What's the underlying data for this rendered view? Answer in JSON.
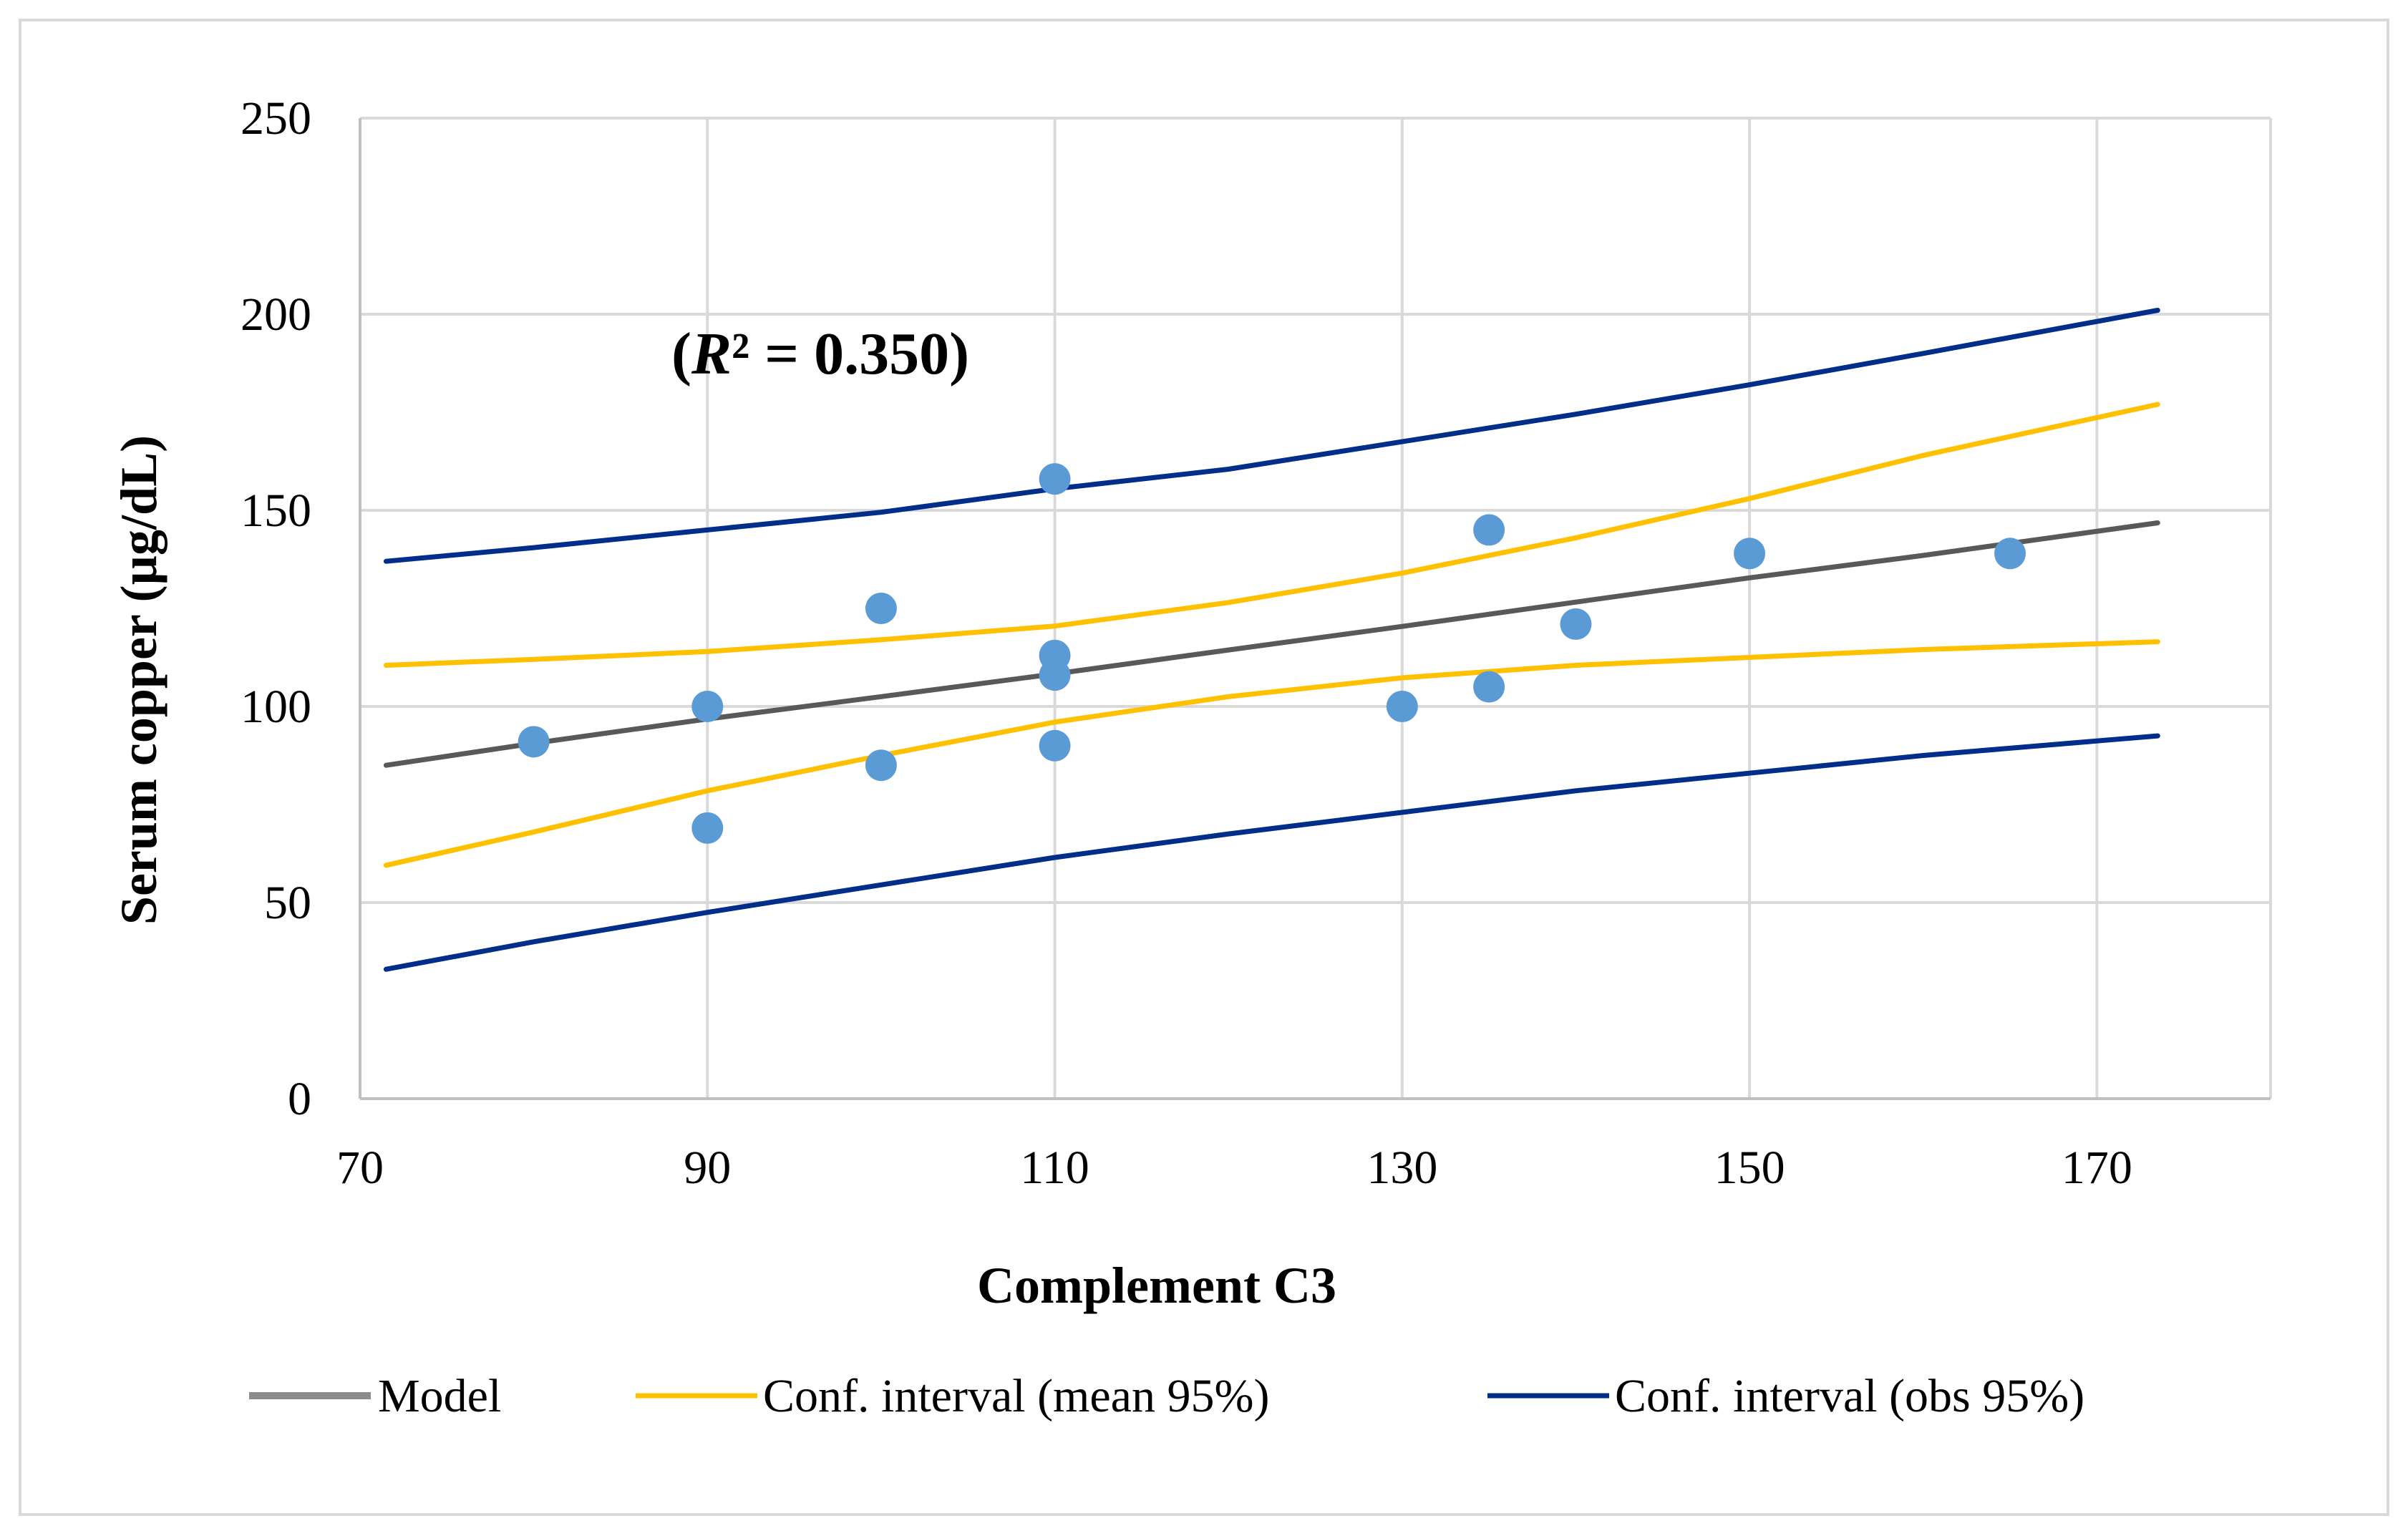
{
  "chart_data": {
    "type": "scatter",
    "title": "",
    "xlabel": "Complement C3",
    "ylabel": "Serum copper (µg/dL)",
    "xlim": [
      70,
      180
    ],
    "ylim": [
      0,
      250
    ],
    "x_ticks": [
      70,
      90,
      110,
      130,
      150,
      170
    ],
    "y_ticks": [
      0,
      50,
      100,
      150,
      200,
      250
    ],
    "x_tick_labels": [
      "70",
      "90",
      "110",
      "130",
      "150",
      "170"
    ],
    "y_tick_labels": [
      "0",
      "50",
      "100",
      "150",
      "200",
      "250"
    ],
    "grid": true,
    "legend_position": "bottom",
    "annotation": {
      "prefix": "(",
      "symbol": "R",
      "superscript": "²",
      "rest": " = 0.350)"
    },
    "points": {
      "name": "Observations",
      "color": "#5b9bd5",
      "x": [
        80,
        90,
        90,
        100,
        100,
        110,
        110,
        110,
        110,
        130,
        135,
        135,
        140,
        150,
        165
      ],
      "y": [
        91,
        100,
        69,
        125,
        85,
        158,
        113,
        108,
        90,
        100,
        145,
        105,
        121,
        139,
        139
      ]
    },
    "series": [
      {
        "name": "Model",
        "color": "#595959",
        "x": [
          71.5,
          80,
          90,
          100,
          110,
          120,
          130,
          140,
          150,
          160,
          173.5
        ],
        "y": [
          85,
          90.6,
          96.8,
          102.5,
          108.3,
          114.4,
          120.4,
          126.6,
          132.8,
          138.5,
          146.8
        ]
      },
      {
        "name": "Conf. interval (mean 95%)",
        "color": "#ffc000",
        "x": [
          71.5,
          80,
          90,
          100,
          110,
          120,
          130,
          140,
          150,
          160,
          173.5
        ],
        "y": [
          110.5,
          112,
          114,
          117,
          120.5,
          126.5,
          134,
          143,
          153,
          164,
          177
        ]
      },
      {
        "name": "Conf. interval (mean 95%)",
        "color": "#ffc000",
        "x": [
          71.5,
          80,
          90,
          100,
          110,
          120,
          130,
          140,
          150,
          160,
          173.5
        ],
        "y": [
          59.5,
          68,
          78.5,
          87.5,
          96,
          102.5,
          107.3,
          110.5,
          112.5,
          114.5,
          116.5
        ]
      },
      {
        "name": "Conf. interval (obs 95%)",
        "color": "#002e8a",
        "x": [
          71.5,
          80,
          90,
          100,
          110,
          120,
          130,
          140,
          150,
          160,
          173.5
        ],
        "y": [
          137,
          140.5,
          145,
          149.5,
          155.5,
          160.5,
          167.5,
          174.5,
          182,
          190,
          201
        ]
      },
      {
        "name": "Conf. interval (obs 95%)",
        "color": "#002e8a",
        "x": [
          71.5,
          80,
          90,
          100,
          110,
          120,
          130,
          140,
          150,
          160,
          173.5
        ],
        "y": [
          33,
          40,
          47.5,
          54.5,
          61.5,
          67.5,
          73,
          78.5,
          83,
          87.5,
          92.5
        ]
      }
    ],
    "legend": [
      {
        "label": "Model",
        "color": "#8c8c8c"
      },
      {
        "label": "Conf. interval (mean 95%)",
        "color": "#ffc000"
      },
      {
        "label": "Conf. interval (obs 95%)",
        "color": "#002e8a"
      }
    ]
  }
}
